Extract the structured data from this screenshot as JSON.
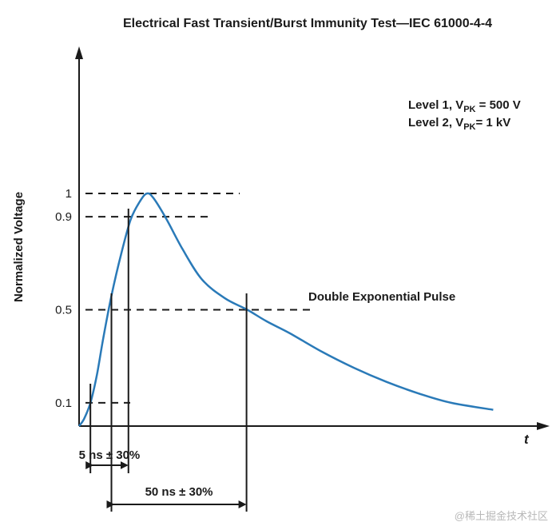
{
  "chart_data": {
    "type": "line",
    "title": "Electrical Fast Transient/Burst Immunity Test—IEC 61000-4-4",
    "ylabel": "Normalized Voltage",
    "xlabel": "t",
    "ylim": [
      0,
      1
    ],
    "y_ticks": [
      {
        "value": 1,
        "label": "1"
      },
      {
        "value": 0.9,
        "label": "0.9"
      },
      {
        "value": 0.5,
        "label": "0.5"
      },
      {
        "value": 0.1,
        "label": "0.1"
      }
    ],
    "series": [
      {
        "name": "Double Exponential Pulse",
        "x": [
          0,
          1.5,
          3.5,
          5.5,
          7.5,
          10,
          13,
          16,
          19,
          21,
          23,
          27,
          32,
          38,
          45,
          52,
          58,
          65,
          75,
          85,
          95,
          105,
          115,
          128
        ],
        "y": [
          0,
          0.03,
          0.1,
          0.22,
          0.38,
          0.56,
          0.74,
          0.89,
          0.97,
          1.0,
          0.98,
          0.89,
          0.76,
          0.63,
          0.55,
          0.5,
          0.45,
          0.4,
          0.32,
          0.25,
          0.19,
          0.14,
          0.1,
          0.07
        ]
      }
    ],
    "markers": {
      "t_10": 3.5,
      "t_50_rise": 10,
      "t_90": 15.5,
      "t_peak": 21,
      "t_50_fall": 52
    },
    "annotations": {
      "rise_time": "5 ns ± 30%",
      "pulse_width": "50 ns ± 30%",
      "pulse_name": "Double Exponential Pulse",
      "level1_prefix": "Level 1, V",
      "level1_sub": "PK",
      "level1_suffix": " = 500 V",
      "level2_prefix": "Level 2, V",
      "level2_sub": "PK",
      "level2_suffix": "= 1 kV"
    },
    "colors": {
      "curve": "#2a7ab8",
      "axes": "#1a1a1a"
    }
  },
  "watermark": "@稀土掘金技术社区"
}
